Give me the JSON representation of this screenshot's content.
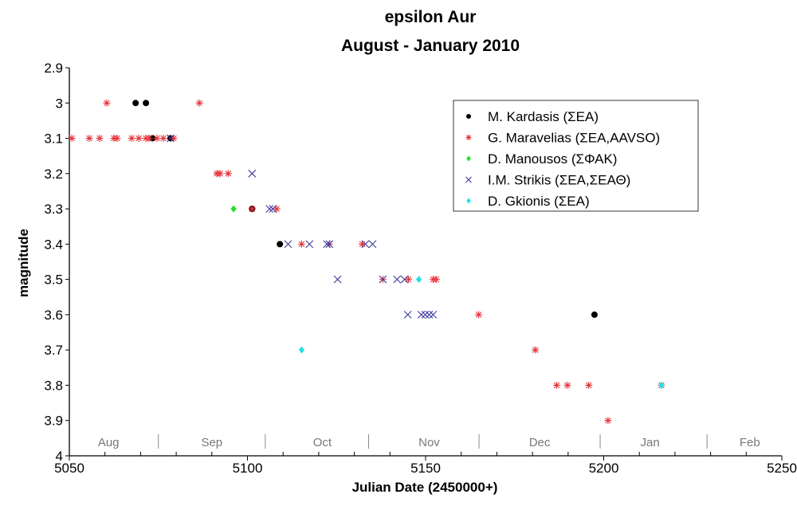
{
  "chart_data": {
    "type": "scatter",
    "title": "epsilon Aur",
    "subtitle": "August - January 2010",
    "xlabel": "Julian Date (2450000+)",
    "ylabel": "magnitude",
    "xlim": [
      5050,
      5250
    ],
    "ylim": [
      2.9,
      4.0
    ],
    "y_inverted": true,
    "x_ticks": [
      "5050",
      "5100",
      "5150",
      "5200",
      "5250"
    ],
    "y_ticks": [
      "2.9",
      "3",
      "3.1",
      "3.2",
      "3.3",
      "3.4",
      "3.5",
      "3.6",
      "3.7",
      "3.8",
      "3.9",
      "4"
    ],
    "months": [
      {
        "label": "Aug",
        "x": 5061
      },
      {
        "label": "Sep",
        "x": 5090
      },
      {
        "label": "Oct",
        "x": 5121
      },
      {
        "label": "Nov",
        "x": 5151
      },
      {
        "label": "Dec",
        "x": 5182
      },
      {
        "label": "Jan",
        "x": 5213
      },
      {
        "label": "Feb",
        "x": 5241
      }
    ],
    "month_separators": [
      5075,
      5105,
      5134,
      5165,
      5199,
      5229
    ],
    "grid": false,
    "legend_position": "top-right",
    "series": [
      {
        "name": "M. Kardasis (ΣΕΑ)",
        "marker": "dot",
        "color": "#000000",
        "points": [
          [
            5068.6,
            3.0
          ],
          [
            5071.5,
            3.0
          ],
          [
            5073.3,
            3.1
          ],
          [
            5078.4,
            3.1
          ],
          [
            5101.3,
            3.3
          ],
          [
            5109.1,
            3.4
          ],
          [
            5197.4,
            3.6
          ]
        ]
      },
      {
        "name": "G. Maravelias (ΣΕΑ,AAVSO)",
        "marker": "asterisk",
        "color": "#e8333a",
        "points": [
          [
            5060.5,
            3.0
          ],
          [
            5086.5,
            3.0
          ],
          [
            5050.7,
            3.1
          ],
          [
            5055.6,
            3.1
          ],
          [
            5058.5,
            3.1
          ],
          [
            5062.5,
            3.1
          ],
          [
            5063.4,
            3.1
          ],
          [
            5067.5,
            3.1
          ],
          [
            5069.5,
            3.1
          ],
          [
            5071.5,
            3.1
          ],
          [
            5072.4,
            3.1
          ],
          [
            5074.6,
            3.1
          ],
          [
            5076.4,
            3.1
          ],
          [
            5079.3,
            3.1
          ],
          [
            5091.4,
            3.2
          ],
          [
            5092.3,
            3.2
          ],
          [
            5094.6,
            3.2
          ],
          [
            5101.3,
            3.3
          ],
          [
            5108.2,
            3.3
          ],
          [
            5115.2,
            3.4
          ],
          [
            5123.0,
            3.4
          ],
          [
            5132.2,
            3.4
          ],
          [
            5138.0,
            3.5
          ],
          [
            5145.2,
            3.5
          ],
          [
            5152.1,
            3.5
          ],
          [
            5153.0,
            3.5
          ],
          [
            5164.9,
            3.6
          ],
          [
            5180.8,
            3.7
          ],
          [
            5186.8,
            3.8
          ],
          [
            5189.8,
            3.8
          ],
          [
            5195.8,
            3.8
          ],
          [
            5216.2,
            3.8
          ],
          [
            5201.2,
            3.9
          ]
        ]
      },
      {
        "name": "D. Manousos (ΣΦΑΚ)",
        "marker": "diamond",
        "color": "#22dd22",
        "points": [
          [
            5096.1,
            3.3
          ]
        ]
      },
      {
        "name": "I.M. Strikis (ΣΕΑ,ΣΕΑΘ)",
        "marker": "cross",
        "color": "#3a3a9a",
        "points": [
          [
            5078.4,
            3.1
          ],
          [
            5101.3,
            3.2
          ],
          [
            5106.2,
            3.3
          ],
          [
            5107.1,
            3.3
          ],
          [
            5111.4,
            3.4
          ],
          [
            5117.4,
            3.4
          ],
          [
            5122.3,
            3.4
          ],
          [
            5123.0,
            3.4
          ],
          [
            5133.1,
            3.4
          ],
          [
            5135.1,
            3.4
          ],
          [
            5125.3,
            3.5
          ],
          [
            5138.0,
            3.5
          ],
          [
            5142.0,
            3.5
          ],
          [
            5144.1,
            3.5
          ],
          [
            5145.0,
            3.6
          ],
          [
            5148.8,
            3.6
          ],
          [
            5149.9,
            3.6
          ],
          [
            5151.0,
            3.6
          ],
          [
            5152.1,
            3.6
          ]
        ]
      },
      {
        "name": "D. Gkionis (ΣΕΑ)",
        "marker": "diamond",
        "color": "#22e0e8",
        "points": [
          [
            5148.1,
            3.5
          ],
          [
            5115.2,
            3.7
          ],
          [
            5216.2,
            3.8
          ]
        ]
      }
    ]
  }
}
